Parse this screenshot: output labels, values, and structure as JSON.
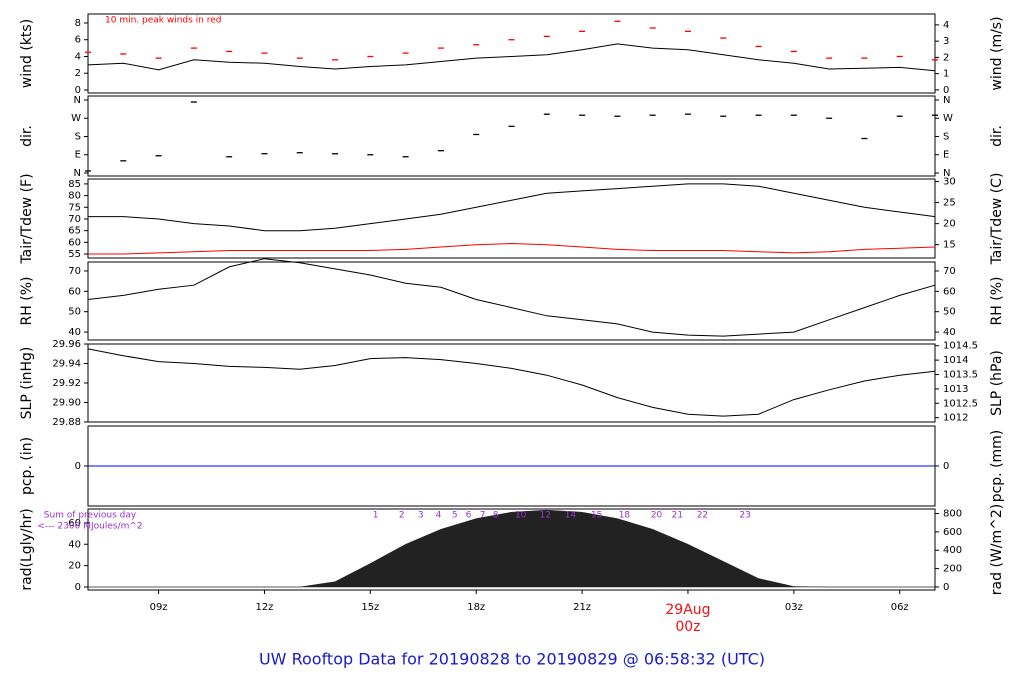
{
  "title": "UW Rooftop Data for 20190828  to  20190829 @ 06:58:32  (UTC)",
  "chart_data": [
    {
      "type": "line",
      "ylabel": "wind (kts)",
      "y2label": "wind (m/s)",
      "annotation": "10 min. peak winds in red",
      "x": [
        7,
        8,
        9,
        10,
        11,
        12,
        13,
        14,
        15,
        16,
        17,
        18,
        19,
        20,
        21,
        22,
        23,
        24,
        25,
        26,
        27,
        28,
        29,
        30,
        31
      ],
      "xlim": [
        7,
        31
      ],
      "ylim": [
        -0.36,
        9.07
      ],
      "yticks": [
        0,
        2,
        4,
        6,
        8
      ],
      "y2lim": [
        -0.19,
        4.67
      ],
      "y2ticks": [
        0,
        1,
        2,
        3,
        4
      ],
      "series": [
        {
          "type": "line",
          "color": "#000000",
          "values": [
            3,
            3.2,
            2.4,
            3.6,
            3.3,
            3.2,
            2.8,
            2.5,
            2.8,
            3,
            3.4,
            3.8,
            4,
            4.2,
            4.8,
            5.5,
            5,
            4.8,
            4.2,
            3.6,
            3.2,
            2.5,
            2.6,
            2.7,
            2.3
          ]
        },
        {
          "type": "scatter",
          "color": "#ff0000",
          "values": [
            4.5,
            4.3,
            3.8,
            5,
            4.6,
            4.4,
            3.8,
            3.6,
            4,
            4.4,
            5,
            5.4,
            6,
            6.4,
            7,
            8.2,
            7.4,
            7,
            6.2,
            5.2,
            4.6,
            3.8,
            3.8,
            4,
            3.6
          ]
        }
      ]
    },
    {
      "type": "scatter",
      "ylabel": "dir.",
      "y2label": "dir.",
      "x": [
        7,
        8,
        9,
        10,
        11,
        12,
        13,
        14,
        15,
        16,
        17,
        18,
        19,
        20,
        21,
        22,
        23,
        24,
        25,
        26,
        27,
        28,
        29,
        30,
        31
      ],
      "xlim": [
        7,
        31
      ],
      "ylim": [
        -14.8,
        379.7
      ],
      "yticks": [
        {
          "value": 360,
          "label": "N"
        },
        {
          "value": 270,
          "label": "W"
        },
        {
          "value": 180,
          "label": "S"
        },
        {
          "value": 90,
          "label": "E"
        },
        {
          "value": 0,
          "label": "N"
        }
      ],
      "y2lim": [
        -14.8,
        379.7
      ],
      "y2ticks": [
        {
          "value": 360,
          "label": "N"
        },
        {
          "value": 270,
          "label": "W"
        },
        {
          "value": 180,
          "label": "S"
        },
        {
          "value": 90,
          "label": "E"
        },
        {
          "value": 0,
          "label": "N"
        }
      ],
      "series": [
        {
          "type": "scatter",
          "color": "#000000",
          "values": [
            10,
            60,
            85,
            350,
            80,
            95,
            100,
            95,
            90,
            80,
            110,
            190,
            230,
            290,
            285,
            280,
            285,
            290,
            280,
            285,
            285,
            270,
            170,
            280,
            285
          ]
        }
      ]
    },
    {
      "type": "line",
      "ylabel": "Tair/Tdew (F)",
      "y2label": "Tair/Tdew (C)",
      "x": [
        7,
        8,
        9,
        10,
        11,
        12,
        13,
        14,
        15,
        16,
        17,
        18,
        19,
        20,
        21,
        22,
        23,
        24,
        25,
        26,
        27,
        28,
        29,
        30,
        31
      ],
      "xlim": [
        7,
        31
      ],
      "ylim": [
        53.3,
        87.1
      ],
      "yticks": [
        55,
        60,
        65,
        70,
        75,
        80,
        85
      ],
      "y2lim": [
        11.83,
        30.61
      ],
      "y2ticks": [
        15,
        20,
        25,
        30
      ],
      "series": [
        {
          "type": "line",
          "color": "#000000",
          "values": [
            71,
            71,
            70,
            68,
            67,
            65,
            65,
            66,
            68,
            70,
            72,
            75,
            78,
            81,
            82,
            83,
            84,
            85,
            85,
            84,
            81,
            78,
            75,
            73,
            71
          ]
        },
        {
          "type": "line",
          "color": "#ff0000",
          "values": [
            55,
            55,
            55.5,
            56,
            56.5,
            56.5,
            56.5,
            56.5,
            56.5,
            57,
            58,
            59,
            59.5,
            59,
            58,
            57,
            56.5,
            56.5,
            56.5,
            56,
            55.5,
            56,
            57,
            57.5,
            58
          ]
        }
      ]
    },
    {
      "type": "line",
      "ylabel": "RH (%)",
      "y2label": "RH (%)",
      "x": [
        7,
        8,
        9,
        10,
        11,
        12,
        13,
        14,
        15,
        16,
        17,
        18,
        19,
        20,
        21,
        22,
        23,
        24,
        25,
        26,
        27,
        28,
        29,
        30,
        31
      ],
      "xlim": [
        7,
        31
      ],
      "ylim": [
        36.1,
        74.4
      ],
      "yticks": [
        40,
        50,
        60,
        70
      ],
      "y2lim": [
        36.1,
        74.4
      ],
      "y2ticks": [
        40,
        50,
        60,
        70
      ],
      "series": [
        {
          "type": "line",
          "color": "#000000",
          "values": [
            56,
            58,
            61,
            63,
            72,
            76,
            74,
            71,
            68,
            64,
            62,
            56,
            52,
            48,
            46,
            44,
            40,
            38.5,
            38,
            39,
            40,
            46,
            52,
            58,
            63
          ]
        }
      ]
    },
    {
      "type": "line",
      "ylabel": "SLP (inHg)",
      "y2label": "SLP (hPa)",
      "x": [
        7,
        8,
        9,
        10,
        11,
        12,
        13,
        14,
        15,
        16,
        17,
        18,
        19,
        20,
        21,
        22,
        23,
        24,
        25,
        26,
        27,
        28,
        29,
        30,
        31
      ],
      "xlim": [
        7,
        31
      ],
      "ylim": [
        29.88,
        29.96
      ],
      "yticks": [
        {
          "value": 29.88,
          "label": "29.88"
        },
        {
          "value": 29.9,
          "label": "29.90"
        },
        {
          "value": 29.92,
          "label": "29.92"
        },
        {
          "value": 29.94,
          "label": "29.94"
        },
        {
          "value": 29.96,
          "label": "29.96"
        }
      ],
      "y2lim": [
        1011.85,
        1014.56
      ],
      "y2ticks": [
        1012,
        1012.5,
        1013,
        1013.5,
        1014,
        1014.5
      ],
      "series": [
        {
          "type": "line",
          "color": "#000000",
          "values": [
            29.955,
            29.948,
            29.942,
            29.94,
            29.937,
            29.936,
            29.934,
            29.938,
            29.945,
            29.946,
            29.944,
            29.94,
            29.935,
            29.928,
            29.918,
            29.905,
            29.895,
            29.888,
            29.886,
            29.888,
            29.903,
            29.913,
            29.922,
            29.928,
            29.932
          ]
        }
      ]
    },
    {
      "type": "line",
      "ylabel": "pcp. (in)",
      "y2label": "pcp. (mm)",
      "x": [
        7,
        31
      ],
      "xlim": [
        7,
        31
      ],
      "ylim": [
        -1,
        1
      ],
      "yticks": [
        0
      ],
      "y2lim": [
        -1,
        1
      ],
      "y2ticks": [
        0
      ],
      "series": [
        {
          "type": "line",
          "color": "#0000ff",
          "values": [
            0,
            0
          ]
        }
      ]
    },
    {
      "type": "area",
      "ylabel": "rad(Lgly/hr)",
      "y2label": "rad (W/m^2)",
      "notes": [
        "Sum of previous day",
        "<--- 2300 MJoules/m^2"
      ],
      "hour_labels": [
        {
          "text": "1",
          "x": 15.15
        },
        {
          "text": "2",
          "x": 15.89
        },
        {
          "text": "3",
          "x": 16.43
        },
        {
          "text": "4",
          "x": 16.93
        },
        {
          "text": "5",
          "x": 17.39
        },
        {
          "text": "6",
          "x": 17.78
        },
        {
          "text": "7",
          "x": 18.18
        },
        {
          "text": "8",
          "x": 18.55
        },
        {
          "text": "10",
          "x": 19.26
        },
        {
          "text": "12",
          "x": 19.96
        },
        {
          "text": "14",
          "x": 20.67
        },
        {
          "text": "15",
          "x": 21.41
        },
        {
          "text": "18",
          "x": 22.2
        },
        {
          "text": "20",
          "x": 23.11
        },
        {
          "text": "21",
          "x": 23.7
        },
        {
          "text": "22",
          "x": 24.41
        },
        {
          "text": "23",
          "x": 25.62
        }
      ],
      "date_label": {
        "text": "29Aug",
        "x": 24
      },
      "x": [
        7,
        8,
        9,
        10,
        11,
        12,
        13,
        14,
        15,
        16,
        17,
        18,
        19,
        20,
        21,
        22,
        23,
        24,
        25,
        26,
        27,
        28,
        29,
        30,
        31
      ],
      "xlim": [
        7,
        31
      ],
      "xticks": [
        {
          "value": 9,
          "label": "09z"
        },
        {
          "value": 12,
          "label": "12z"
        },
        {
          "value": 15,
          "label": "15z"
        },
        {
          "value": 18,
          "label": "18z"
        },
        {
          "value": 21,
          "label": "21z"
        },
        {
          "value": 24,
          "label": "00z"
        },
        {
          "value": 27,
          "label": "03z"
        },
        {
          "value": 30,
          "label": "06z"
        }
      ],
      "ylim": [
        -2.8,
        73
      ],
      "yticks": [
        0,
        20,
        40,
        60
      ],
      "y2lim": [
        -33,
        849
      ],
      "y2ticks": [
        0,
        200,
        400,
        600,
        800
      ],
      "series": [
        {
          "type": "area",
          "color": "#222222",
          "values": [
            0,
            0,
            0,
            0,
            0,
            0,
            0,
            5,
            22,
            40,
            54,
            64,
            70,
            72,
            70,
            64,
            54,
            40,
            24,
            8,
            0.5,
            0,
            0,
            0,
            0
          ]
        }
      ]
    }
  ]
}
